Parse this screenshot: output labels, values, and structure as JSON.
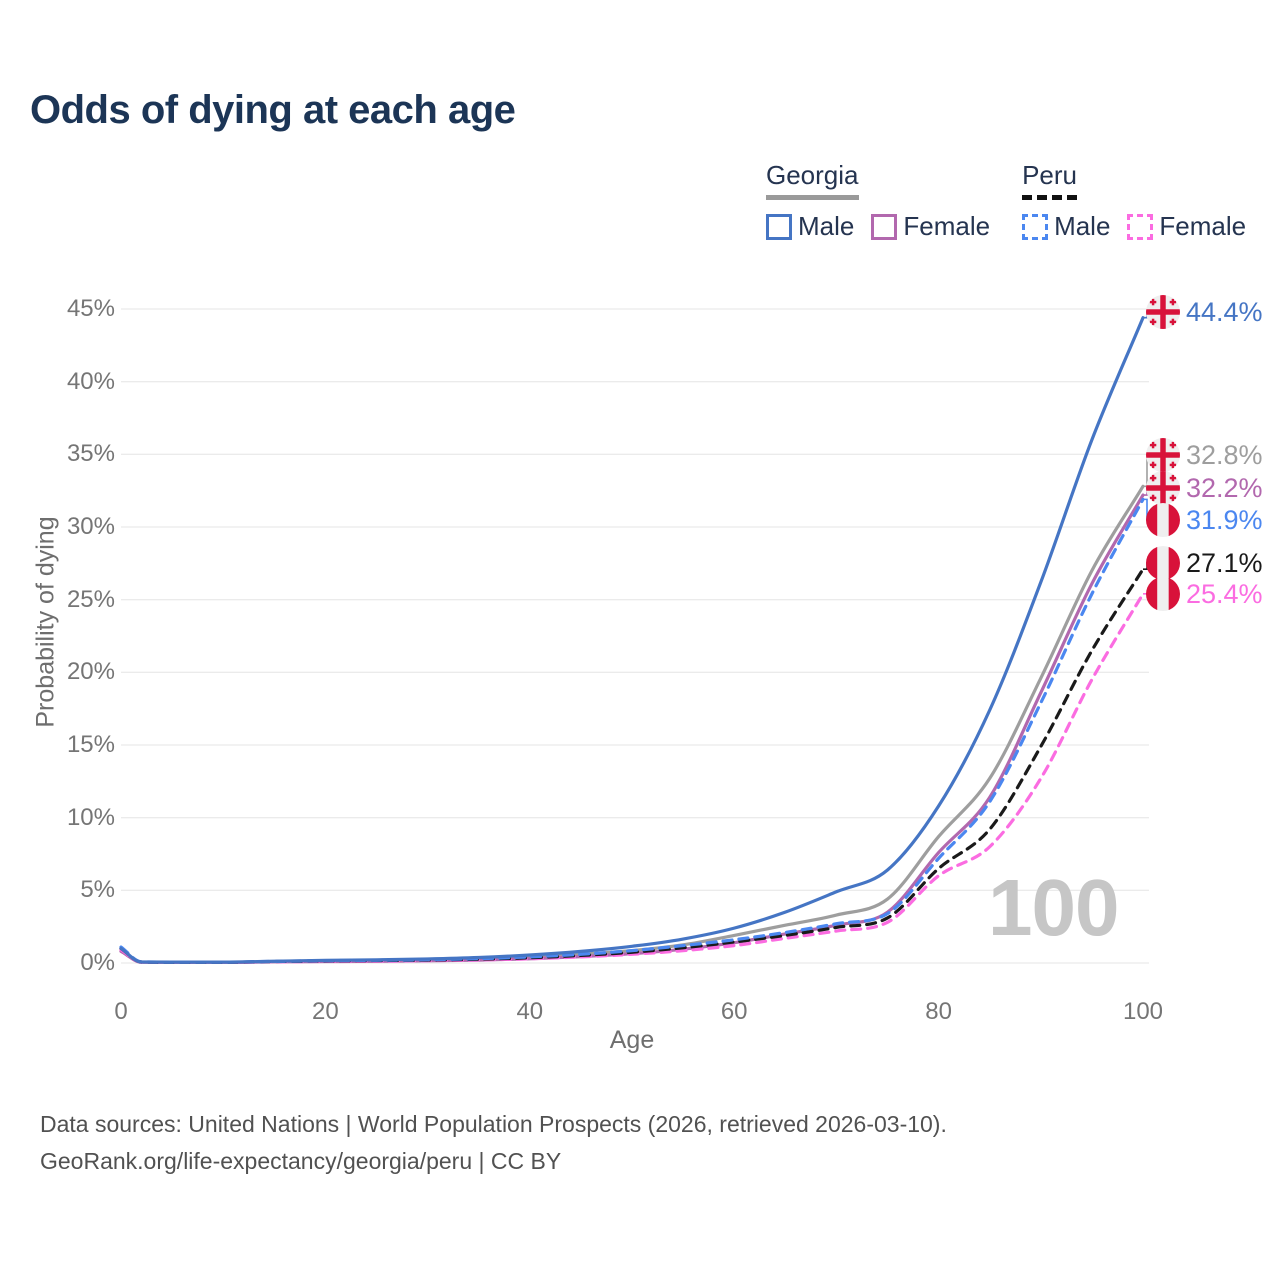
{
  "page": {
    "title": "Odds of dying at each age",
    "watermark": "100",
    "footer_line1": "Data sources: United Nations | World Population Prospects (2026, retrieved 2026-03-10).",
    "footer_line2": "GeoRank.org/life-expectancy/georgia/peru | CC BY"
  },
  "legend": {
    "groups": [
      {
        "country": "Georgia",
        "line_style": "solid",
        "underline_color": "#9a9a9a",
        "items": [
          {
            "label": "Male",
            "color": "#4575c4",
            "dashed": false
          },
          {
            "label": "Female",
            "color": "#b268ae",
            "dashed": false
          }
        ]
      },
      {
        "country": "Peru",
        "line_style": "dashed",
        "underline_color": "#111111",
        "items": [
          {
            "label": "Male",
            "color": "#4b87f0",
            "dashed": true
          },
          {
            "label": "Female",
            "color": "#fb6ce1",
            "dashed": true
          }
        ]
      }
    ]
  },
  "chart_data": {
    "type": "line",
    "title": "Odds of dying at each age",
    "xlabel": "Age",
    "ylabel": "Probability of dying",
    "xlim": [
      0,
      100
    ],
    "ylim_pct": [
      0,
      45
    ],
    "x_ticks": [
      0,
      20,
      40,
      60,
      80,
      100
    ],
    "y_ticks_pct": [
      0,
      5,
      10,
      15,
      20,
      25,
      30,
      35,
      40,
      45
    ],
    "grid": "horizontal",
    "legend_position": "top-right",
    "x": [
      0,
      2,
      5,
      10,
      15,
      20,
      25,
      30,
      35,
      40,
      45,
      50,
      55,
      60,
      65,
      70,
      75,
      80,
      85,
      90,
      95,
      100
    ],
    "series": [
      {
        "name": "Georgia Male",
        "country": "Georgia",
        "sex": "Male",
        "color": "#4575c4",
        "dash": "solid",
        "end_label": "44.4%",
        "flag": "georgia",
        "values": [
          1.0,
          0.07,
          0.06,
          0.06,
          0.12,
          0.18,
          0.22,
          0.28,
          0.38,
          0.55,
          0.8,
          1.15,
          1.65,
          2.4,
          3.5,
          4.9,
          6.4,
          10.8,
          17.4,
          26.2,
          36.0,
          44.4
        ]
      },
      {
        "name": "Georgia combined",
        "country": "Georgia",
        "sex": "All",
        "color": "#9e9e9e",
        "dash": "solid",
        "end_label": "32.8%",
        "flag": "georgia",
        "values": [
          0.9,
          0.06,
          0.05,
          0.05,
          0.1,
          0.14,
          0.17,
          0.21,
          0.28,
          0.4,
          0.6,
          0.85,
          1.25,
          1.9,
          2.6,
          3.3,
          4.4,
          8.7,
          12.7,
          19.6,
          27.0,
          32.8
        ]
      },
      {
        "name": "Georgia Female",
        "country": "Georgia",
        "sex": "Female",
        "color": "#b268ae",
        "dash": "solid",
        "end_label": "32.2%",
        "flag": "georgia",
        "values": [
          0.8,
          0.05,
          0.04,
          0.04,
          0.08,
          0.1,
          0.12,
          0.15,
          0.2,
          0.29,
          0.44,
          0.64,
          0.95,
          1.4,
          2.0,
          2.6,
          3.5,
          7.6,
          11.4,
          18.6,
          26.1,
          32.2
        ]
      },
      {
        "name": "Peru Male",
        "country": "Peru",
        "sex": "Male",
        "color": "#4b87f0",
        "dash": "dashed",
        "end_label": "31.9%",
        "flag": "peru",
        "values": [
          1.1,
          0.08,
          0.06,
          0.06,
          0.11,
          0.16,
          0.19,
          0.23,
          0.3,
          0.42,
          0.6,
          0.85,
          1.2,
          1.6,
          2.1,
          2.7,
          3.4,
          7.2,
          11.1,
          17.9,
          25.4,
          31.9
        ]
      },
      {
        "name": "Peru combined",
        "country": "Peru",
        "sex": "All",
        "color": "#1a1a1a",
        "dash": "dashed",
        "end_label": "27.1%",
        "flag": "peru",
        "values": [
          1.0,
          0.07,
          0.05,
          0.05,
          0.1,
          0.14,
          0.17,
          0.2,
          0.26,
          0.36,
          0.52,
          0.74,
          1.05,
          1.45,
          1.9,
          2.45,
          3.1,
          6.5,
          9.2,
          14.9,
          21.5,
          27.1
        ]
      },
      {
        "name": "Peru Female",
        "country": "Peru",
        "sex": "Female",
        "color": "#fb6ce1",
        "dash": "dashed",
        "end_label": "25.4%",
        "flag": "peru",
        "values": [
          0.9,
          0.06,
          0.05,
          0.05,
          0.08,
          0.11,
          0.13,
          0.16,
          0.21,
          0.29,
          0.42,
          0.6,
          0.85,
          1.2,
          1.7,
          2.2,
          2.8,
          6.0,
          8.0,
          12.7,
          19.5,
          25.4
        ]
      }
    ],
    "flag_colors": {
      "red": "#d8123a",
      "white": "#efefef"
    },
    "gridline_color": "#ebebeb"
  }
}
